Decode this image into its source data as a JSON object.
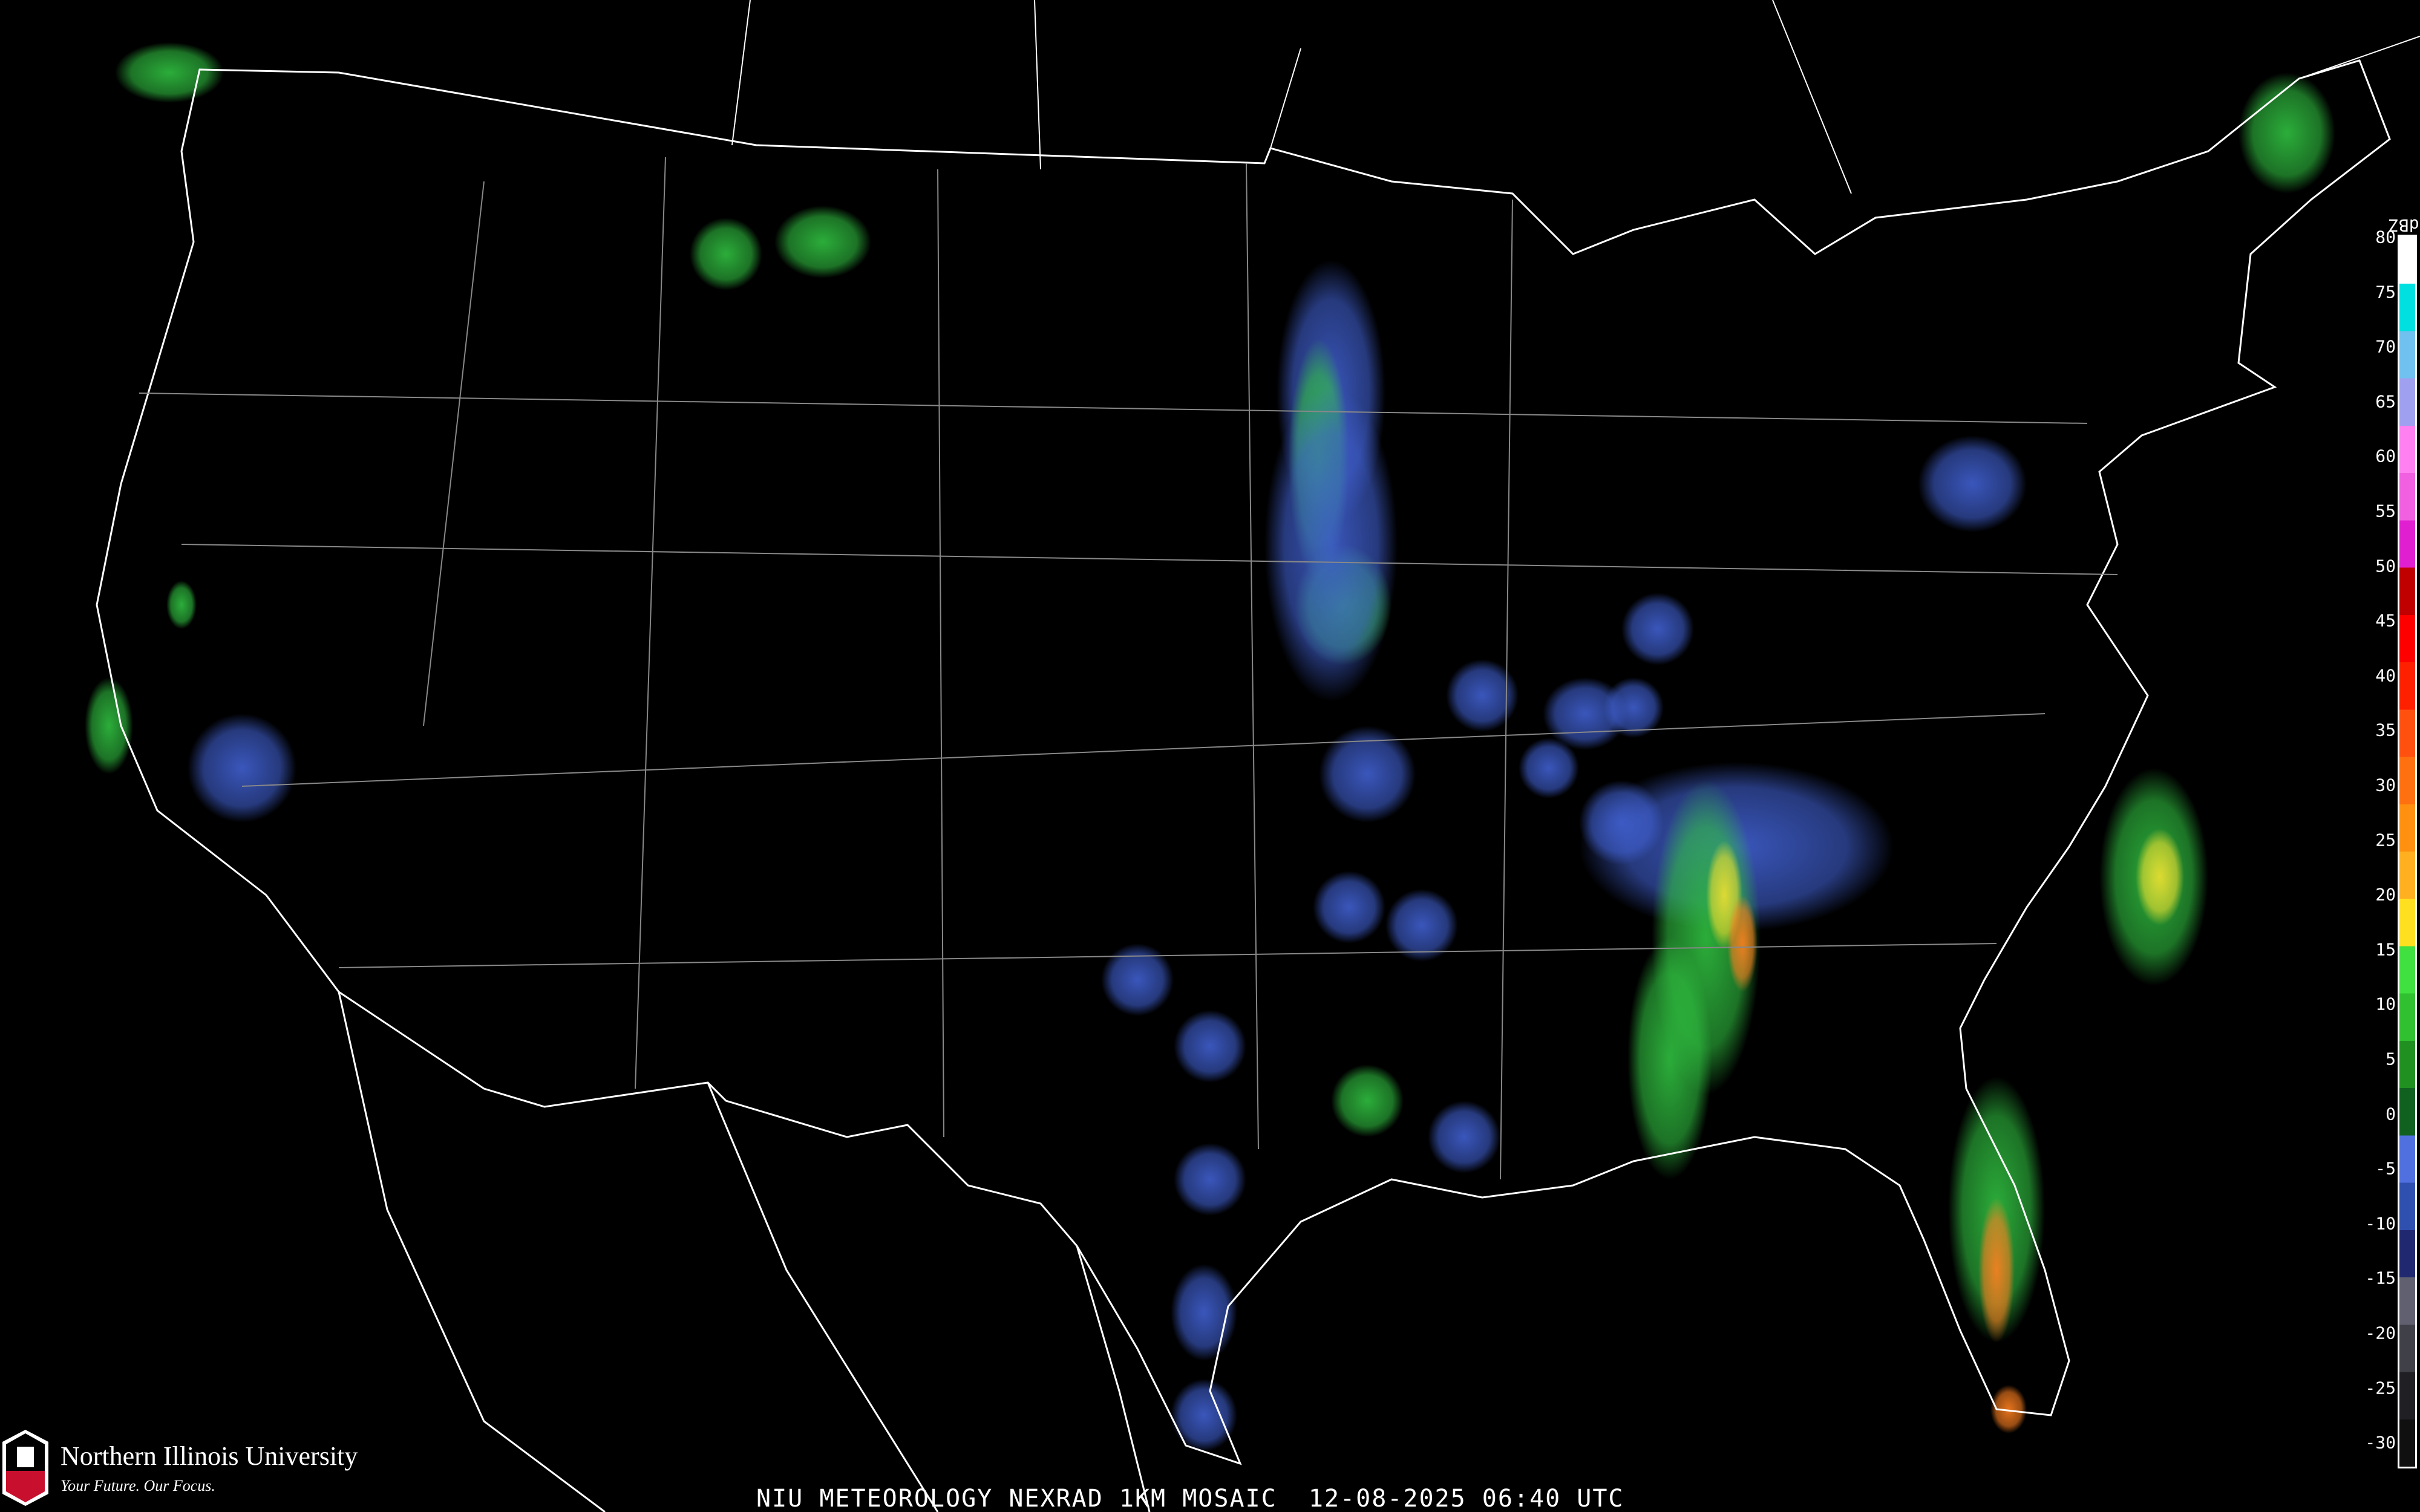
{
  "title": "NIU METEOROLOGY NEXRAD 1KM MOSAIC  12-08-2025 06:40 UTC",
  "logo": {
    "name": "Northern Illinois University",
    "tagline": "Your Future. Our Focus.",
    "mark": "NIU"
  },
  "legend": {
    "unit": "dBZ",
    "labels": [
      "80",
      "75",
      "70",
      "65",
      "60",
      "55",
      "50",
      "45",
      "40",
      "35",
      "30",
      "25",
      "20",
      "15",
      "10",
      "5",
      "0",
      "-5",
      "-10",
      "-15",
      "-20",
      "-25",
      "-30"
    ],
    "colors": [
      "#ffffff",
      "#00e0e0",
      "#70c0f0",
      "#a0a0f0",
      "#ff80f0",
      "#f060e0",
      "#e020d0",
      "#c00000",
      "#ff0000",
      "#ff2000",
      "#ff5010",
      "#ff7010",
      "#ff9010",
      "#ffb020",
      "#ffe020",
      "#40e040",
      "#30c030",
      "#209020",
      "#106020",
      "#5070e0",
      "#3050b0",
      "#202870",
      "#606070",
      "#404048",
      "#202024",
      "#101010"
    ]
  }
}
